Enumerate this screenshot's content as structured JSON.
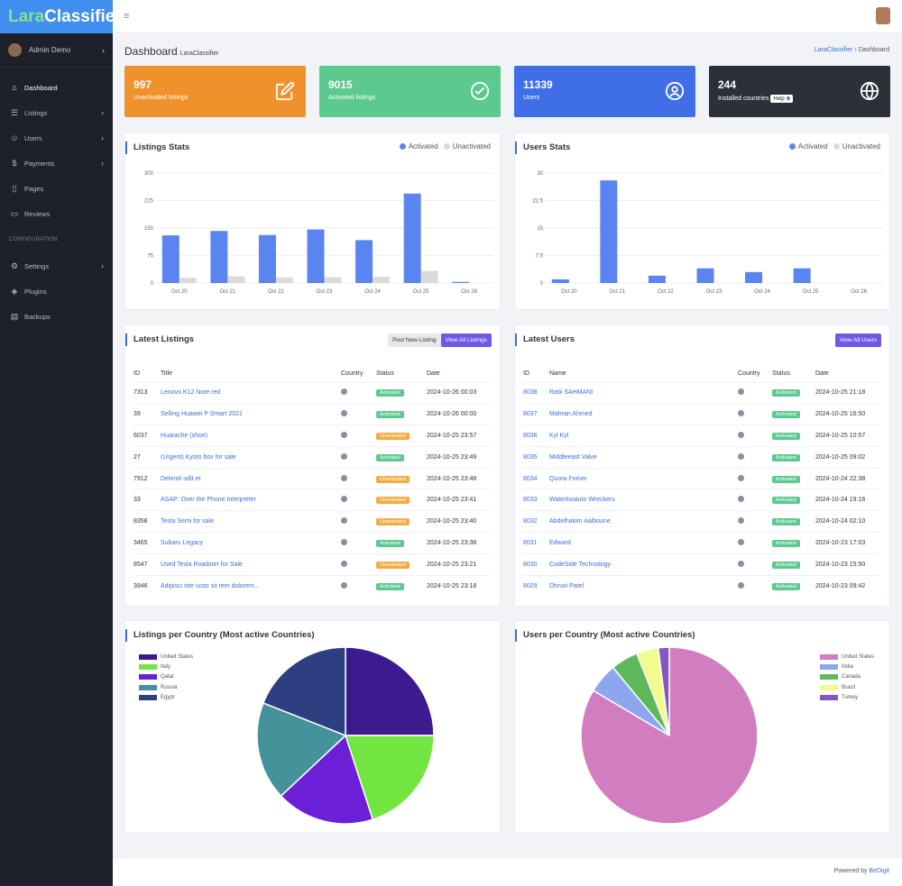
{
  "app": {
    "logo_part1": "Lara",
    "logo_part2": "Classifier"
  },
  "sidebar": {
    "admin_name": "Admin Demo",
    "items": [
      {
        "label": "Dashboard",
        "icon": "home-icon",
        "glyph": "⌂",
        "chevron": false
      },
      {
        "label": "Listings",
        "icon": "list-icon",
        "glyph": "☰",
        "chevron": true
      },
      {
        "label": "Users",
        "icon": "users-icon",
        "glyph": "☺",
        "chevron": true
      },
      {
        "label": "Payments",
        "icon": "dollar-icon",
        "glyph": "$",
        "chevron": true
      },
      {
        "label": "Pages",
        "icon": "book-icon",
        "glyph": "▯",
        "chevron": false
      },
      {
        "label": "Reviews",
        "icon": "comment-icon",
        "glyph": "▭",
        "chevron": false
      }
    ],
    "section_label": "CONFIGURATION",
    "config_items": [
      {
        "label": "Settings",
        "icon": "gear-icon",
        "glyph": "⚙",
        "chevron": true
      },
      {
        "label": "Plugins",
        "icon": "package-icon",
        "glyph": "◈",
        "chevron": false
      },
      {
        "label": "Backups",
        "icon": "backup-icon",
        "glyph": "▤",
        "chevron": false
      }
    ]
  },
  "header": {
    "title": "Dashboard",
    "subtitle": "LaraClassifier",
    "breadcrumb_home": "LaraClassifier",
    "breadcrumb_sep": "›",
    "breadcrumb_current": "Dashboard"
  },
  "cards": [
    {
      "value": "997",
      "label": "Unactivated listings",
      "color": "#ef922c",
      "icon": "edit-icon"
    },
    {
      "value": "9015",
      "label": "Activated listings",
      "color": "#5cc98f",
      "icon": "check-circle-icon"
    },
    {
      "value": "11339",
      "label": "Users",
      "color": "#3f6ee6",
      "icon": "user-circle-icon"
    },
    {
      "value": "244",
      "label": "Installed countries",
      "help": "Help",
      "color": "#2c3139",
      "icon": "globe-icon"
    }
  ],
  "listings_stats": {
    "title": "Listings Stats"
  },
  "users_stats": {
    "title": "Users Stats"
  },
  "chart_data": [
    {
      "type": "bar",
      "title": "Listings Stats",
      "categories": [
        "Oct 20",
        "Oct 21",
        "Oct 22",
        "Oct 23",
        "Oct 24",
        "Oct 25",
        "Oct 26"
      ],
      "yticks": [
        "0",
        "75",
        "150",
        "225",
        "300"
      ],
      "ylim": [
        0,
        300
      ],
      "legend_position": "top-right",
      "grid": true,
      "series": [
        {
          "name": "Activated",
          "color": "#5a85f0",
          "values": [
            130,
            142,
            131,
            146,
            117,
            244,
            3
          ]
        },
        {
          "name": "Unactivated",
          "color": "#dadada",
          "values": [
            14,
            18,
            15,
            16,
            17,
            33,
            0
          ]
        }
      ]
    },
    {
      "type": "bar",
      "title": "Users Stats",
      "categories": [
        "Oct 20",
        "Oct 21",
        "Oct 22",
        "Oct 23",
        "Oct 24",
        "Oct 25",
        "Oct 26"
      ],
      "yticks": [
        "0",
        "7.5",
        "15",
        "22.5",
        "30"
      ],
      "ylim": [
        0,
        30
      ],
      "legend_position": "top-right",
      "grid": true,
      "series": [
        {
          "name": "Activated",
          "color": "#5a85f0",
          "values": [
            1,
            28,
            2,
            4,
            3,
            4,
            0
          ]
        },
        {
          "name": "Unactivated",
          "color": "#dadada",
          "values": [
            0,
            0,
            0,
            0,
            0,
            0,
            0
          ]
        }
      ]
    },
    {
      "type": "pie",
      "title": "Listings per Country (Most active Countries)",
      "legend_position": "top-left",
      "labels": [
        "United States",
        "Italy",
        "Qatar",
        "Russia",
        "Egypt"
      ],
      "colors": [
        "#3d1b8f",
        "#72e540",
        "#6b20d8",
        "#45939a",
        "#2d3f80"
      ],
      "values": [
        25,
        20,
        18,
        18,
        19
      ]
    },
    {
      "type": "pie",
      "title": "Users per Country (Most active Countries)",
      "legend_position": "top-left",
      "labels": [
        "United States",
        "India",
        "Canada",
        "Brazil",
        "Turkey"
      ],
      "colors": [
        "#d17dbf",
        "#8da6ef",
        "#5fb95a",
        "#f2fb8e",
        "#8356c0"
      ],
      "values": [
        83.5,
        5.5,
        5,
        4,
        2
      ]
    }
  ],
  "latest_listings": {
    "title": "Latest Listings",
    "btn_post": "Post New Listing",
    "btn_view": "View All Listings",
    "columns": [
      "ID",
      "Title",
      "Country",
      "Status",
      "Date"
    ],
    "rows": [
      {
        "id": "7313",
        "title": "Lenovo K12 Note red",
        "status": "Activated",
        "date": "2024-10-26 00:03"
      },
      {
        "id": "39",
        "title": "Selling Huawei P Smart 2021",
        "status": "Activated",
        "date": "2024-10-26 00:00"
      },
      {
        "id": "6037",
        "title": "Huarache (shoe)",
        "status": "Unactivated",
        "date": "2024-10-25 23:57"
      },
      {
        "id": "27",
        "title": "(Urgent) Kyoto box for sale",
        "status": "Activated",
        "date": "2024-10-25 23:49"
      },
      {
        "id": "7912",
        "title": "Deleniti odit et",
        "status": "Unactivated",
        "date": "2024-10-25 23:48"
      },
      {
        "id": "33",
        "title": "ASAP: Over the Phone Interpreter",
        "status": "Unactivated",
        "date": "2024-10-25 23:41"
      },
      {
        "id": "8358",
        "title": "Tesla Semi for sale",
        "status": "Unactivated",
        "date": "2024-10-25 23:40"
      },
      {
        "id": "3465",
        "title": "Subaru Legacy",
        "status": "Activated",
        "date": "2024-10-25 23:38"
      },
      {
        "id": "8547",
        "title": "Used Tesla Roadster for Sale",
        "status": "Unactivated",
        "date": "2024-10-25 23:21"
      },
      {
        "id": "3946",
        "title": "Adipisci iste iusto sit rem dolorem...",
        "status": "Activated",
        "date": "2024-10-25 23:18"
      }
    ]
  },
  "latest_users": {
    "title": "Latest Users",
    "btn_view": "View All Users",
    "columns": [
      "ID",
      "Name",
      "Country",
      "Status",
      "Date"
    ],
    "rows": [
      {
        "id": "8038",
        "name": "Rabi SAHMANI",
        "status": "Activated",
        "date": "2024-10-25 21:18"
      },
      {
        "id": "8037",
        "name": "Mahran Ahmed",
        "status": "Activated",
        "date": "2024-10-25 16:50"
      },
      {
        "id": "8036",
        "name": "Kyl Kyl",
        "status": "Activated",
        "date": "2024-10-25 10:57"
      },
      {
        "id": "8035",
        "name": "Middleeast Valve",
        "status": "Activated",
        "date": "2024-10-25 09:02"
      },
      {
        "id": "8034",
        "name": "Quora Forum",
        "status": "Activated",
        "date": "2024-10-24 22:38"
      },
      {
        "id": "8033",
        "name": "Waterlooauto Wreckers",
        "status": "Activated",
        "date": "2024-10-24 19:16"
      },
      {
        "id": "8032",
        "name": "Abdelhakim Aalboune",
        "status": "Activated",
        "date": "2024-10-24 02:10"
      },
      {
        "id": "8031",
        "name": "Edward",
        "status": "Activated",
        "date": "2024-10-23 17:03"
      },
      {
        "id": "8030",
        "name": "CodeSide Technology",
        "status": "Activated",
        "date": "2024-10-23 15:50"
      },
      {
        "id": "8029",
        "name": "Dhruvi Patel",
        "status": "Activated",
        "date": "2024-10-23 09:42"
      }
    ]
  },
  "footer": {
    "prefix": "Powered by",
    "link": "BeDigit"
  }
}
